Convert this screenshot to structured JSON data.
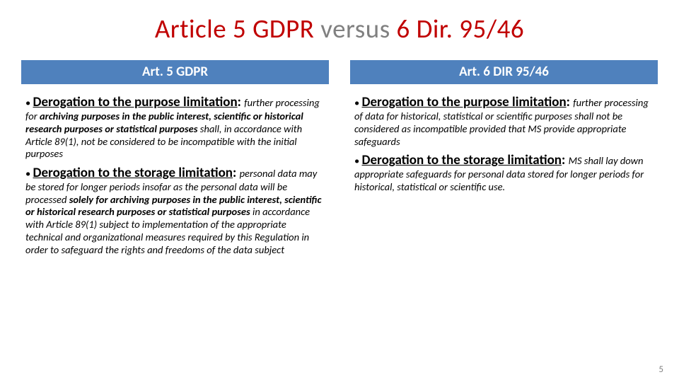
{
  "title_parts": [
    {
      "text": "Article 5 GDPR ",
      "color": "#c00000"
    },
    {
      "text": "versus",
      "color": "#808080"
    },
    {
      "text": " 6 Dir. 95/46",
      "color": "#c00000"
    }
  ],
  "left": {
    "header": "Art. 5 GDPR",
    "items": [
      {
        "lead": "Derogation to the purpose limitation",
        "tail_html": "<i>further processing for <b>archiving purposes in the public interest, scientific or historical research purposes or statistical purposes</b> shall, in accordance with Article 89(1), not be considered to be incompatible with the initial purposes</i>"
      },
      {
        "lead": "Derogation to the storage limitation",
        "tail_html": "<i>personal data may be stored for longer periods insofar as the personal data will be processed <b>solely for archiving purposes in the public interest, scientific or historical research purposes or statistical purposes</b> in accordance with Article 89(1) subject to implementation of the appropriate technical and organizational measures required by this Regulation in order to safeguard the rights and freedoms of the data subject</i>"
      }
    ]
  },
  "right": {
    "header": "Art. 6 DIR 95/46",
    "items": [
      {
        "lead": "Derogation to the purpose limitation",
        "tail_html": "<i>further processing of data for historical, statistical or scientific purposes shall not be considered as incompatible provided that MS provide appropriate safeguards</i>"
      },
      {
        "lead": "Derogation to the storage limitation",
        "tail_html": "<i>MS shall lay down appropriate safeguards for personal data stored for longer periods for historical, statistical or scientific use.</i>"
      }
    ]
  },
  "page_number": "5",
  "colors": {
    "header_bg": "#4f81bd",
    "header_fg": "#ffffff",
    "title_red": "#c00000",
    "title_gray": "#808080",
    "pagenum": "#808080",
    "background": "#ffffff"
  }
}
